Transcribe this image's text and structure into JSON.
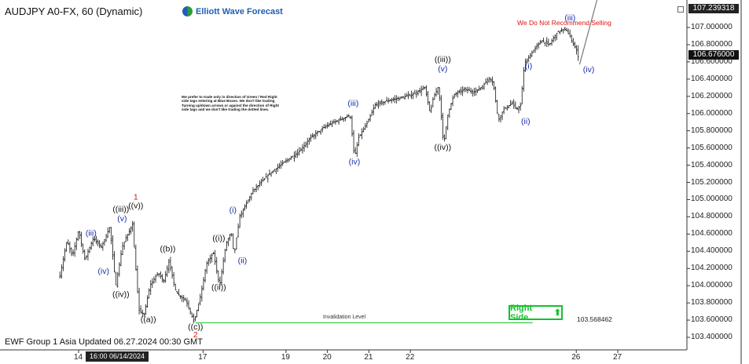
{
  "header": {
    "title": "AUDJPY A0-FX, 60 (Dynamic)",
    "logo_text": "Elliott Wave Forecast"
  },
  "warning_text": "We Do Not Recommend Selling",
  "note_text": "We prefer to trade only in direction of Green / Red Right side tags entering at Blue Boxes. We don't like trading Turning up/down arrows or against the direction of Right side tags and we don't like trading the dotted lines.",
  "footer_text": "EWF Group 1 Asia Updated 06.27.2024 00:30 GMT",
  "right_side_label": "Right Side",
  "colors": {
    "up": "#12c32a",
    "wave_blue": "#1a2fa8",
    "wave_red": "#d61515",
    "candle": "#111111"
  },
  "chart_data": {
    "type": "candlestick",
    "price_axis": {
      "ylim": [
        103.3,
        107.3
      ],
      "ticks": [
        103.4,
        103.6,
        103.8,
        104.0,
        104.2,
        104.4,
        104.6,
        104.8,
        105.0,
        105.2,
        105.4,
        105.6,
        105.8,
        106.0,
        106.2,
        106.4,
        106.6,
        106.8,
        107.0
      ],
      "tick_labels": [
        "103.400000",
        "103.600000",
        "103.800000",
        "104.000000",
        "104.200000",
        "104.400000",
        "104.600000",
        "104.800000",
        "105.000000",
        "105.200000",
        "105.400000",
        "105.600000",
        "105.800000",
        "106.000000",
        "106.200000",
        "106.400000",
        "106.600000",
        "106.800000",
        "107.000000"
      ],
      "top_marker": "107.239318",
      "current_price": "106.676000"
    },
    "time_axis": {
      "span_days": [
        13.55,
        27.75
      ],
      "ticks": [
        {
          "day": 14,
          "label": "14"
        },
        {
          "day": 17,
          "label": "17"
        },
        {
          "day": 19,
          "label": "19"
        },
        {
          "day": 20,
          "label": "20"
        },
        {
          "day": 21,
          "label": "21"
        },
        {
          "day": 22,
          "label": "22"
        },
        {
          "day": 26,
          "label": "26"
        },
        {
          "day": 27,
          "label": "27"
        }
      ],
      "cursor_label": "16:00 06/14/2024"
    },
    "invalidation": {
      "label": "Invalidation Level",
      "value": 103.568462,
      "value_label": "103.568462"
    },
    "path": [
      [
        13.55,
        104.12
      ],
      [
        13.72,
        104.52
      ],
      [
        13.85,
        104.34
      ],
      [
        14.0,
        104.65
      ],
      [
        14.15,
        104.3
      ],
      [
        14.35,
        104.55
      ],
      [
        14.55,
        104.45
      ],
      [
        14.75,
        104.68
      ],
      [
        14.9,
        104.0
      ],
      [
        15.05,
        104.45
      ],
      [
        15.3,
        104.72
      ],
      [
        15.45,
        103.72
      ],
      [
        15.58,
        103.66
      ],
      [
        15.72,
        104.0
      ],
      [
        15.92,
        104.15
      ],
      [
        16.05,
        104.05
      ],
      [
        16.18,
        104.28
      ],
      [
        16.35,
        103.92
      ],
      [
        16.6,
        103.82
      ],
      [
        16.78,
        103.58
      ],
      [
        16.95,
        103.9
      ],
      [
        17.08,
        104.25
      ],
      [
        17.25,
        104.38
      ],
      [
        17.4,
        104.0
      ],
      [
        17.55,
        104.48
      ],
      [
        17.68,
        104.62
      ],
      [
        17.75,
        104.35
      ],
      [
        17.88,
        104.8
      ],
      [
        18.2,
        105.1
      ],
      [
        18.6,
        105.3
      ],
      [
        19.0,
        105.45
      ],
      [
        19.3,
        105.55
      ],
      [
        19.6,
        105.72
      ],
      [
        19.95,
        105.85
      ],
      [
        20.25,
        105.92
      ],
      [
        20.55,
        105.98
      ],
      [
        20.65,
        105.48
      ],
      [
        20.75,
        105.72
      ],
      [
        20.95,
        105.88
      ],
      [
        21.15,
        106.1
      ],
      [
        21.45,
        106.15
      ],
      [
        21.75,
        106.18
      ],
      [
        22.05,
        106.22
      ],
      [
        22.35,
        106.3
      ],
      [
        22.48,
        106.0
      ],
      [
        22.55,
        106.18
      ],
      [
        22.68,
        106.32
      ],
      [
        22.8,
        105.63
      ],
      [
        22.9,
        105.98
      ],
      [
        23.05,
        106.22
      ],
      [
        23.3,
        106.28
      ],
      [
        23.55,
        106.25
      ],
      [
        23.75,
        106.32
      ],
      [
        23.9,
        106.42
      ],
      [
        24.0,
        106.35
      ],
      [
        24.12,
        105.92
      ],
      [
        24.25,
        106.05
      ],
      [
        24.45,
        106.12
      ],
      [
        24.55,
        106.05
      ],
      [
        24.65,
        106.08
      ],
      [
        24.75,
        106.58
      ],
      [
        24.95,
        106.72
      ],
      [
        25.15,
        106.85
      ],
      [
        25.35,
        106.8
      ],
      [
        25.55,
        106.95
      ],
      [
        25.75,
        106.98
      ],
      [
        25.92,
        106.82
      ],
      [
        26.02,
        106.72
      ],
      [
        26.08,
        106.57
      ]
    ],
    "projection": [
      [
        26.08,
        106.57
      ],
      [
        26.5,
        107.32
      ]
    ],
    "wave_labels": [
      {
        "text": "(iii)",
        "day": 14.3,
        "price": 104.58,
        "color": "blue"
      },
      {
        "text": "(iv)",
        "day": 14.6,
        "price": 104.14,
        "color": "blue"
      },
      {
        "text": "((iii))",
        "day": 15.02,
        "price": 104.86,
        "color": "black"
      },
      {
        "text": "(v)",
        "day": 15.05,
        "price": 104.75,
        "color": "blue"
      },
      {
        "text": "((iv))",
        "day": 15.02,
        "price": 103.87,
        "color": "black"
      },
      {
        "text": "1",
        "day": 15.38,
        "price": 105.0,
        "color": "red"
      },
      {
        "text": "((v))",
        "day": 15.38,
        "price": 104.9,
        "color": "black"
      },
      {
        "text": "((a))",
        "day": 15.68,
        "price": 103.58,
        "color": "black"
      },
      {
        "text": "((b))",
        "day": 16.15,
        "price": 104.4,
        "color": "black"
      },
      {
        "text": "((c))",
        "day": 16.82,
        "price": 103.49,
        "color": "black"
      },
      {
        "text": "2",
        "day": 16.82,
        "price": 103.4,
        "color": "red"
      },
      {
        "text": "((i))",
        "day": 17.38,
        "price": 104.52,
        "color": "black"
      },
      {
        "text": "((ii))",
        "day": 17.38,
        "price": 103.95,
        "color": "black"
      },
      {
        "text": "(i)",
        "day": 17.72,
        "price": 104.85,
        "color": "blue"
      },
      {
        "text": "(ii)",
        "day": 17.95,
        "price": 104.26,
        "color": "blue"
      },
      {
        "text": "(iii)",
        "day": 20.62,
        "price": 106.09,
        "color": "blue"
      },
      {
        "text": "(iv)",
        "day": 20.65,
        "price": 105.41,
        "color": "blue"
      },
      {
        "text": "((iii))",
        "day": 22.78,
        "price": 106.6,
        "color": "black"
      },
      {
        "text": "(v)",
        "day": 22.78,
        "price": 106.49,
        "color": "blue"
      },
      {
        "text": "((iv))",
        "day": 22.78,
        "price": 105.58,
        "color": "black"
      },
      {
        "text": "(i)",
        "day": 24.85,
        "price": 106.52,
        "color": "blue"
      },
      {
        "text": "(ii)",
        "day": 24.78,
        "price": 105.88,
        "color": "blue"
      },
      {
        "text": "(iii)",
        "day": 25.85,
        "price": 107.08,
        "color": "blue"
      },
      {
        "text": "(iv)",
        "day": 26.3,
        "price": 106.48,
        "color": "blue"
      }
    ]
  }
}
